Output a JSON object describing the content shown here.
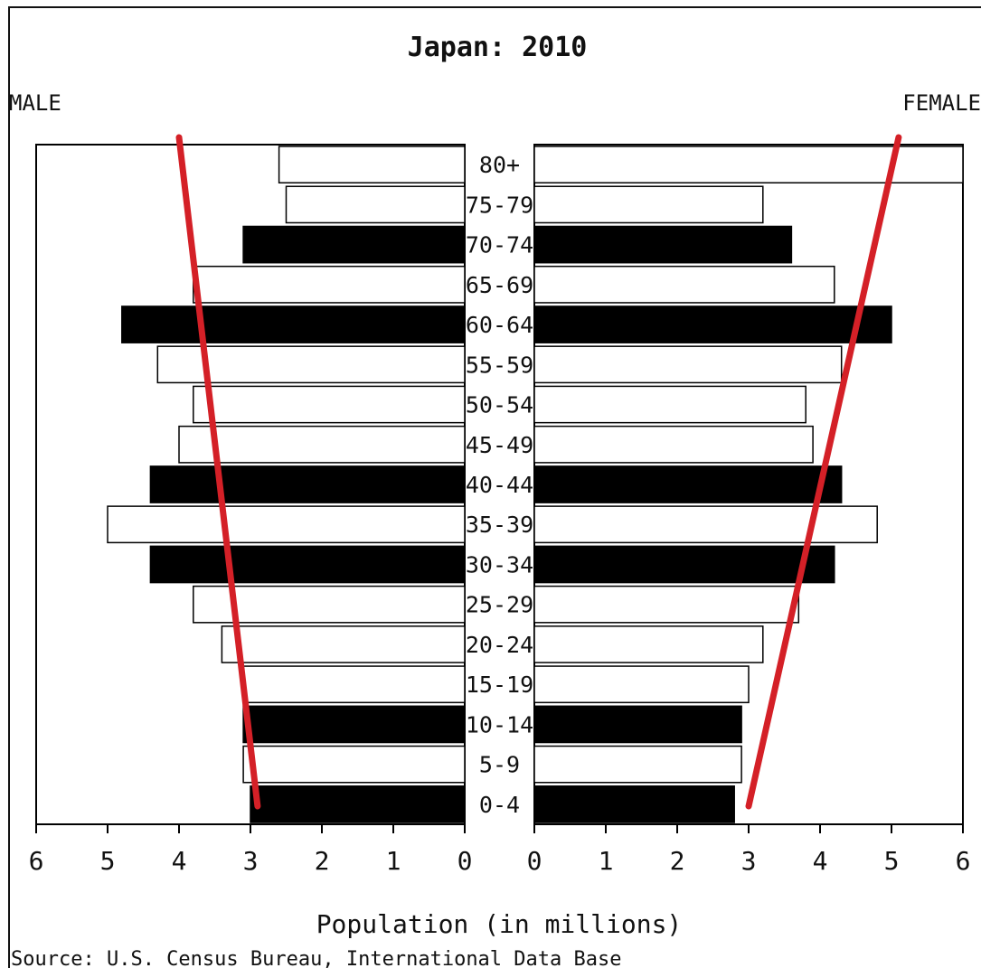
{
  "chart_data": {
    "type": "bar",
    "orientation": "horizontal",
    "layout": "population-pyramid",
    "title": "Japan: 2010",
    "left_label": "MALE",
    "right_label": "FEMALE",
    "xlabel": "Population (in millions)",
    "source": "Source: U.S. Census Bureau, International Data Base",
    "xlim": [
      0,
      6
    ],
    "xticks": [
      "0",
      "1",
      "2",
      "3",
      "4",
      "5",
      "6"
    ],
    "categories": [
      "80+",
      "75-79",
      "70-74",
      "65-69",
      "60-64",
      "55-59",
      "50-54",
      "45-49",
      "40-44",
      "35-39",
      "30-34",
      "25-29",
      "20-24",
      "15-19",
      "10-14",
      "5-9",
      "0-4"
    ],
    "fills": [
      "white",
      "white",
      "black",
      "white",
      "black",
      "white",
      "white",
      "white",
      "black",
      "white",
      "black",
      "white",
      "white",
      "white",
      "black",
      "white",
      "black"
    ],
    "series": [
      {
        "name": "MALE",
        "values": [
          2.6,
          2.5,
          3.1,
          3.8,
          4.8,
          4.3,
          3.8,
          4.0,
          4.4,
          5.0,
          4.4,
          3.8,
          3.4,
          3.1,
          3.1,
          3.1,
          3.0
        ]
      },
      {
        "name": "FEMALE",
        "values": [
          6.0,
          3.2,
          3.6,
          4.2,
          5.0,
          4.3,
          3.8,
          3.9,
          4.3,
          4.8,
          4.2,
          3.7,
          3.2,
          3.0,
          2.9,
          2.9,
          2.8
        ]
      }
    ],
    "trend_lines": [
      {
        "side": "MALE",
        "from": {
          "category": "80+",
          "value": 4.0
        },
        "to": {
          "category": "0-4",
          "value": 2.9
        }
      },
      {
        "side": "FEMALE",
        "from": {
          "category": "80+",
          "value": 5.1
        },
        "to": {
          "category": "0-4",
          "value": 3.0
        }
      }
    ],
    "colors": {
      "bar_dark": "#000000",
      "bar_light": "#ffffff",
      "trend": "#d42027",
      "axis": "#000000"
    },
    "grid": false
  }
}
